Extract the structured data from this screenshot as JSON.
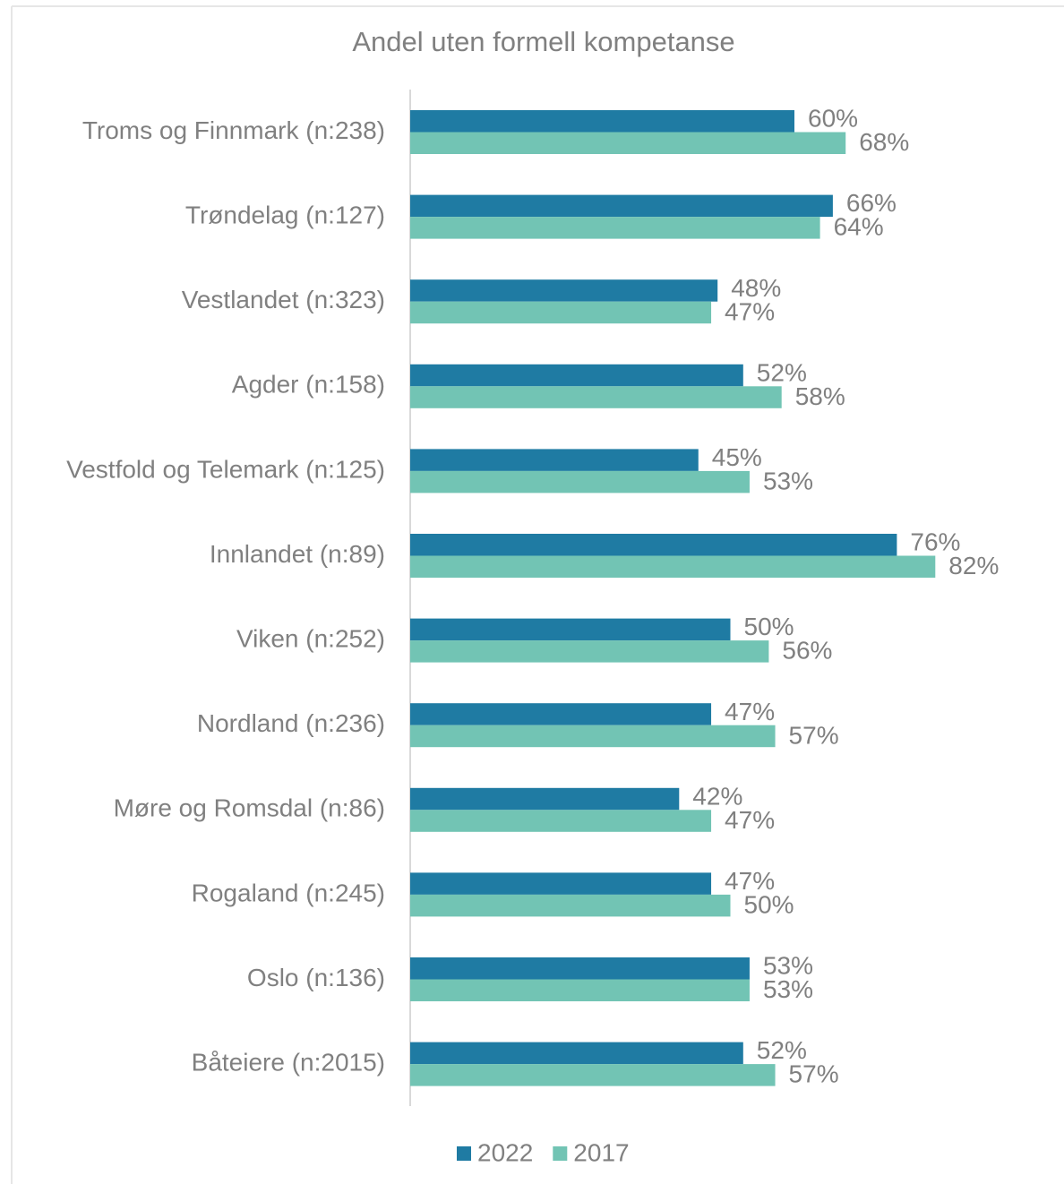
{
  "chart_data": {
    "type": "hbar",
    "title": "Andel uten formell kompetanse",
    "categories": [
      "Troms og Finnmark (n:238)",
      "Trøndelag (n:127)",
      "Vestlandet (n:323)",
      "Agder (n:158)",
      "Vestfold og Telemark (n:125)",
      "Innlandet (n:89)",
      "Viken (n:252)",
      "Nordland (n:236)",
      "Møre og Romsdal (n:86)",
      "Rogaland (n:245)",
      "Oslo (n:136)",
      "Båteiere (n:2015)"
    ],
    "series": [
      {
        "name": "2022",
        "color": "#1f7ba3",
        "values": [
          60,
          66,
          48,
          52,
          45,
          76,
          50,
          47,
          42,
          47,
          53,
          52
        ],
        "value_labels": [
          "60%",
          "66%",
          "48%",
          "52%",
          "45%",
          "76%",
          "50%",
          "47%",
          "42%",
          "47%",
          "53%",
          "52%"
        ]
      },
      {
        "name": "2017",
        "color": "#72c4b4",
        "values": [
          68,
          64,
          47,
          58,
          53,
          82,
          56,
          57,
          47,
          50,
          53,
          57
        ],
        "value_labels": [
          "68%",
          "64%",
          "47%",
          "58%",
          "53%",
          "82%",
          "56%",
          "57%",
          "47%",
          "50%",
          "53%",
          "57%"
        ]
      }
    ],
    "xlim": [
      0,
      100
    ],
    "legend": "bottom"
  }
}
